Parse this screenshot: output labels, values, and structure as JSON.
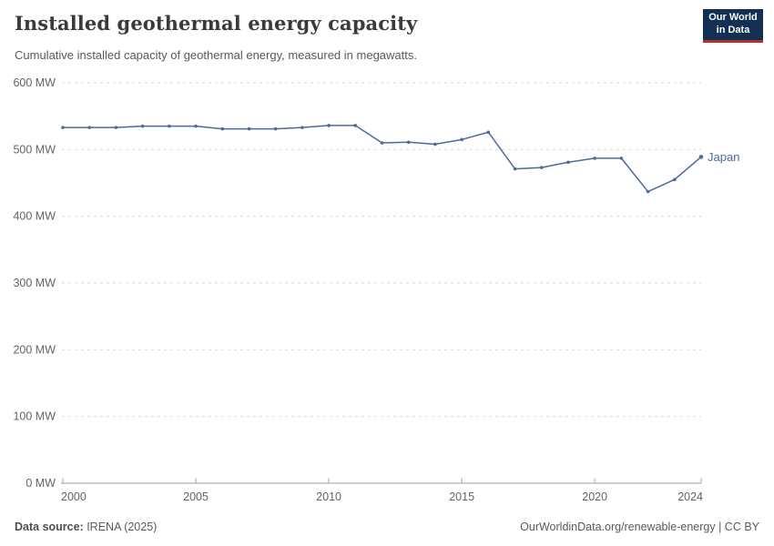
{
  "header": {
    "title": "Installed geothermal energy capacity",
    "subtitle": "Cumulative installed capacity of geothermal energy, measured in megawatts."
  },
  "logo": {
    "line1": "Our World",
    "line2": "in Data",
    "bg_color": "#132f52",
    "accent_color": "#b92e2b"
  },
  "chart_data": {
    "type": "line",
    "title": "Installed geothermal energy capacity",
    "xlabel": "",
    "ylabel": "",
    "unit": "MW",
    "x": [
      2000,
      2001,
      2002,
      2003,
      2004,
      2005,
      2006,
      2007,
      2008,
      2009,
      2010,
      2011,
      2012,
      2013,
      2014,
      2015,
      2016,
      2017,
      2018,
      2019,
      2020,
      2021,
      2022,
      2023,
      2024
    ],
    "series": [
      {
        "name": "Japan",
        "color": "#4c6a9c",
        "values": [
          533,
          533,
          533,
          535,
          535,
          535,
          531,
          531,
          531,
          533,
          536,
          536,
          510,
          511,
          508,
          515,
          526,
          471,
          473,
          481,
          487,
          487,
          437,
          455,
          489
        ]
      }
    ],
    "xlim": [
      2000,
      2024
    ],
    "ylim": [
      0,
      600
    ],
    "xticks": [
      2000,
      2005,
      2010,
      2015,
      2020,
      2024
    ],
    "yticks": [
      0,
      100,
      200,
      300,
      400,
      500,
      600
    ],
    "ytick_suffix": " MW",
    "grid": "horizontal-dashed",
    "legend_position": "end-of-line",
    "gridline_color": "#dadada",
    "axis_color": "#a1a1a1",
    "tick_label_color": "#636363"
  },
  "footer": {
    "datasource_label": "Data source:",
    "datasource_value": " IRENA (2025)",
    "right_text": "OurWorldinData.org/renewable-energy | CC BY"
  }
}
